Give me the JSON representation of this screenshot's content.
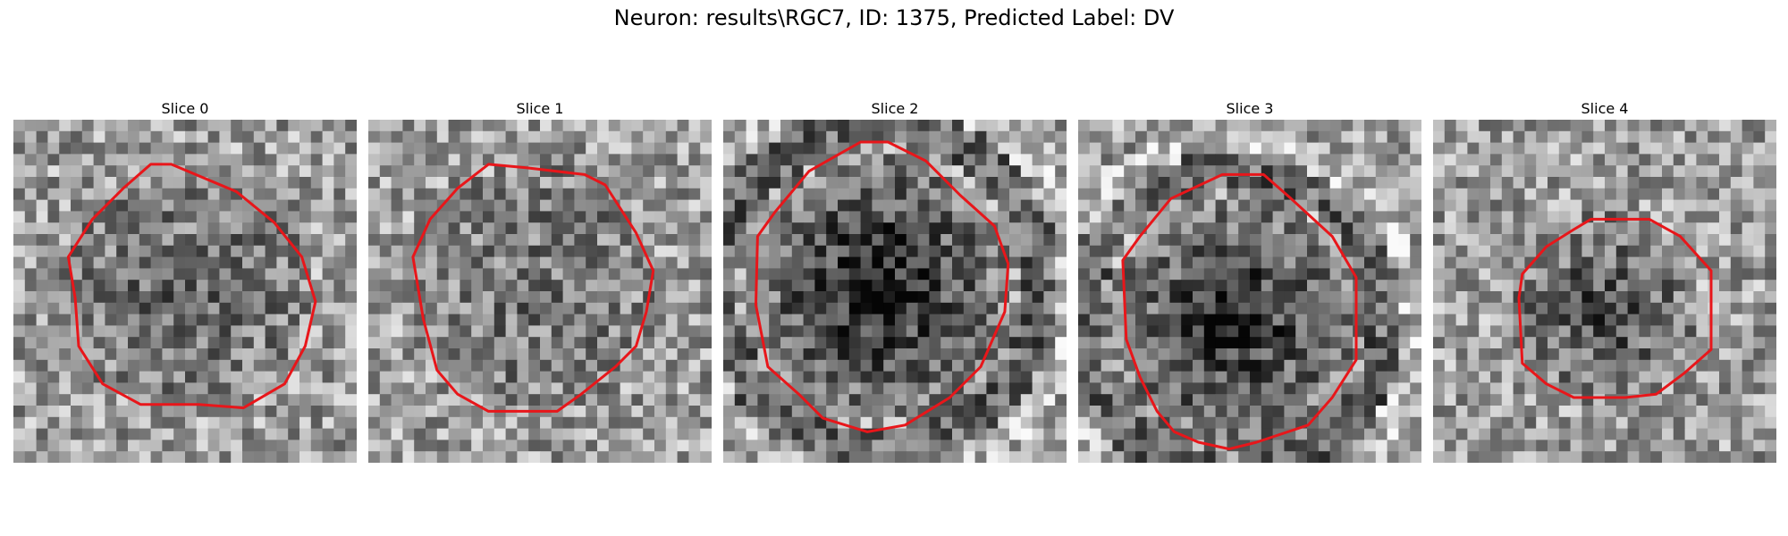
{
  "figure": {
    "title": "Neuron: results\\RGC7, ID: 1375, Predicted Label: DV"
  },
  "outline_color": "#e8161a",
  "panels": [
    {
      "title": "Slice 0",
      "ring": "none",
      "dark_center": 0.15,
      "outline": [
        [
          4.0,
          1.3
        ],
        [
          4.6,
          1.3
        ],
        [
          6.5,
          2.1
        ],
        [
          7.6,
          3.0
        ],
        [
          8.4,
          4.0
        ],
        [
          8.8,
          5.3
        ],
        [
          8.5,
          6.6
        ],
        [
          7.9,
          7.7
        ],
        [
          6.7,
          8.4
        ],
        [
          5.4,
          8.3
        ],
        [
          3.7,
          8.3
        ],
        [
          2.6,
          7.7
        ],
        [
          1.9,
          6.6
        ],
        [
          1.8,
          5.2
        ],
        [
          1.6,
          4.0
        ],
        [
          2.3,
          2.9
        ],
        [
          3.2,
          2.0
        ]
      ]
    },
    {
      "title": "Slice 1",
      "ring": "none",
      "dark_center": 0.1,
      "outline": [
        [
          3.5,
          1.3
        ],
        [
          4.6,
          1.4
        ],
        [
          6.3,
          1.6
        ],
        [
          6.9,
          1.9
        ],
        [
          7.8,
          3.3
        ],
        [
          8.3,
          4.4
        ],
        [
          8.1,
          5.6
        ],
        [
          7.8,
          6.6
        ],
        [
          7.2,
          7.2
        ],
        [
          6.2,
          8.0
        ],
        [
          5.5,
          8.5
        ],
        [
          3.5,
          8.5
        ],
        [
          2.6,
          8.0
        ],
        [
          2.0,
          7.3
        ],
        [
          1.6,
          5.8
        ],
        [
          1.3,
          4.0
        ],
        [
          1.8,
          2.9
        ],
        [
          2.6,
          2.0
        ]
      ]
    },
    {
      "title": "Slice 2",
      "ring": "outer",
      "dark_center": 0.5,
      "outline": [
        [
          4.0,
          0.65
        ],
        [
          4.8,
          0.65
        ],
        [
          5.9,
          1.2
        ],
        [
          6.9,
          2.2
        ],
        [
          7.9,
          3.1
        ],
        [
          8.3,
          4.2
        ],
        [
          8.2,
          5.6
        ],
        [
          7.5,
          7.2
        ],
        [
          6.6,
          8.1
        ],
        [
          5.3,
          8.9
        ],
        [
          4.2,
          9.1
        ],
        [
          2.9,
          8.7
        ],
        [
          2.2,
          8.0
        ],
        [
          1.3,
          7.2
        ],
        [
          0.95,
          5.4
        ],
        [
          1.0,
          3.4
        ],
        [
          1.5,
          2.7
        ],
        [
          2.5,
          1.5
        ]
      ]
    },
    {
      "title": "Slice 3",
      "ring": "outer",
      "dark_center": 0.45,
      "outline": [
        [
          4.2,
          1.6
        ],
        [
          5.4,
          1.6
        ],
        [
          6.2,
          2.3
        ],
        [
          7.4,
          3.4
        ],
        [
          8.1,
          4.6
        ],
        [
          8.1,
          7.0
        ],
        [
          7.4,
          8.1
        ],
        [
          6.7,
          8.9
        ],
        [
          5.2,
          9.4
        ],
        [
          4.4,
          9.6
        ],
        [
          3.5,
          9.4
        ],
        [
          2.8,
          9.1
        ],
        [
          2.3,
          8.5
        ],
        [
          1.8,
          7.5
        ],
        [
          1.4,
          6.4
        ],
        [
          1.3,
          4.1
        ],
        [
          1.8,
          3.4
        ],
        [
          2.7,
          2.3
        ]
      ]
    },
    {
      "title": "Slice 4",
      "ring": "none",
      "dark_center": 0.3,
      "outline": [
        [
          4.6,
          2.9
        ],
        [
          6.3,
          2.9
        ],
        [
          7.2,
          3.4
        ],
        [
          8.1,
          4.4
        ],
        [
          8.1,
          6.7
        ],
        [
          7.3,
          7.4
        ],
        [
          6.5,
          8.0
        ],
        [
          5.6,
          8.1
        ],
        [
          4.1,
          8.1
        ],
        [
          3.3,
          7.7
        ],
        [
          2.6,
          7.1
        ],
        [
          2.5,
          5.2
        ],
        [
          2.6,
          4.5
        ],
        [
          3.3,
          3.7
        ],
        [
          4.1,
          3.2
        ]
      ]
    }
  ]
}
